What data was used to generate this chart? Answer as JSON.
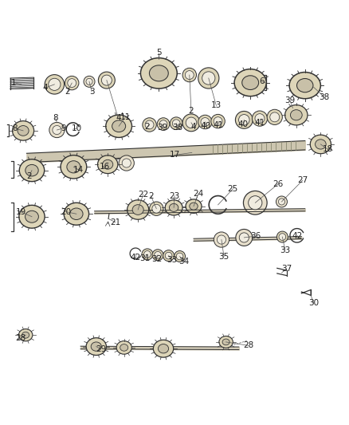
{
  "bg_color": "#ffffff",
  "line_color": "#333333",
  "label_color": "#222222",
  "leader_color": "#555555"
}
